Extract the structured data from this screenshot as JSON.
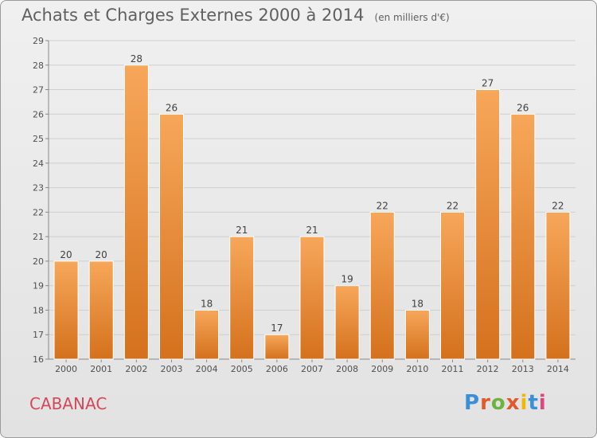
{
  "header": {
    "title": "Achats et Charges Externes 2000 à 2014",
    "unit": "(en milliers d'€)"
  },
  "footer": {
    "location": "CABANAC",
    "brand": "Proxiti",
    "brand_colors": [
      "#3a8fd6",
      "#e05a2b",
      "#6db33f",
      "#e05a2b",
      "#f2b705",
      "#3a8fd6",
      "#e0457b"
    ]
  },
  "colors": {
    "bar_light": "#f7a75a",
    "bar_dark": "#d4711d",
    "grid": "#cfcfcf",
    "axis_text": "#505050",
    "label_text": "#404040"
  },
  "chart_data": {
    "type": "bar",
    "title": "Achats et Charges Externes 2000 à 2014",
    "subtitle": "(en milliers d'€)",
    "xlabel": "",
    "ylabel": "",
    "categories": [
      "2000",
      "2001",
      "2002",
      "2003",
      "2004",
      "2005",
      "2006",
      "2007",
      "2008",
      "2009",
      "2010",
      "2011",
      "2012",
      "2013",
      "2014"
    ],
    "values": [
      20,
      20,
      28,
      26,
      18,
      21,
      17,
      21,
      19,
      22,
      18,
      22,
      27,
      26,
      22
    ],
    "ylim": [
      16,
      29
    ],
    "yticks": [
      16,
      17,
      18,
      19,
      20,
      21,
      22,
      23,
      24,
      25,
      26,
      27,
      28,
      29
    ],
    "grid": true,
    "legend": "none"
  }
}
